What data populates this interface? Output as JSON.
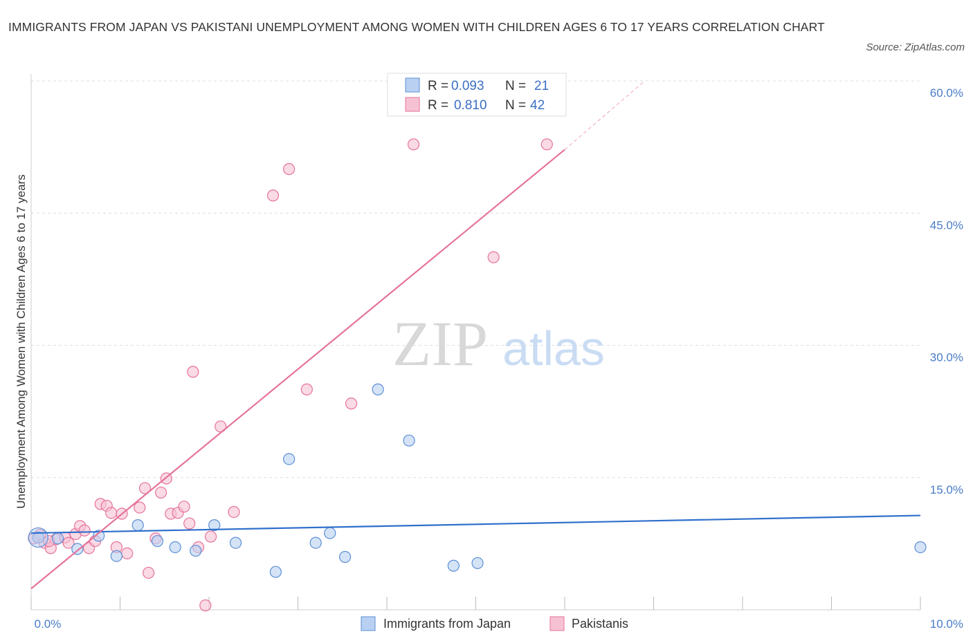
{
  "title": "IMMIGRANTS FROM JAPAN VS PAKISTANI UNEMPLOYMENT AMONG WOMEN WITH CHILDREN AGES 6 TO 17 YEARS CORRELATION CHART",
  "source": "Source: ZipAtlas.com",
  "watermark": {
    "zip": "ZIP",
    "atlas": "atlas"
  },
  "colors": {
    "japan": "#5b8fd6",
    "japan_fill": "#b9d0f2",
    "pakistani": "#e57399",
    "pakistani_fill": "#f6c2d3",
    "grid": "#dddddd",
    "axis_text": "#4a7cc7"
  },
  "chart_data": {
    "type": "scatter",
    "title": "IMMIGRANTS FROM JAPAN VS PAKISTANI UNEMPLOYMENT AMONG WOMEN WITH CHILDREN AGES 6 TO 17 YEARS CORRELATION CHART",
    "xlabel": "",
    "ylabel": "Unemployment Among Women with Children Ages 6 to 17 years",
    "xlim": [
      0,
      10
    ],
    "ylim": [
      0,
      60
    ],
    "x_tick_labels": [
      "0.0%",
      "10.0%"
    ],
    "y_ticks": [
      15,
      30,
      45,
      60
    ],
    "y_tick_labels": [
      "15.0%",
      "30.0%",
      "45.0%",
      "60.0%"
    ],
    "grid": true,
    "legend": [
      {
        "r_label": "R =",
        "r": "0.093",
        "n_label": "N =",
        "n": "21"
      },
      {
        "r_label": "R =",
        "r": "0.810",
        "n_label": "N =",
        "n": "42"
      }
    ],
    "series": [
      {
        "name": "Immigrants from Japan",
        "trend": {
          "x0": 0,
          "y0": 8.7,
          "x1": 10,
          "y1": 10.7
        },
        "points": [
          [
            0.08,
            8.2
          ],
          [
            0.3,
            8.1
          ],
          [
            0.52,
            6.9
          ],
          [
            0.76,
            8.4
          ],
          [
            0.96,
            6.1
          ],
          [
            1.2,
            9.6
          ],
          [
            1.42,
            7.8
          ],
          [
            1.62,
            7.1
          ],
          [
            1.85,
            6.7
          ],
          [
            2.06,
            9.6
          ],
          [
            2.3,
            7.6
          ],
          [
            2.75,
            4.3
          ],
          [
            2.9,
            17.1
          ],
          [
            3.2,
            7.6
          ],
          [
            3.36,
            8.7
          ],
          [
            3.53,
            6.0
          ],
          [
            3.9,
            25.0
          ],
          [
            4.25,
            19.2
          ],
          [
            4.75,
            5.0
          ],
          [
            5.02,
            5.3
          ],
          [
            10.0,
            7.1
          ]
        ]
      },
      {
        "name": "Pakistanis",
        "trend": {
          "x0": 0,
          "y0": 2.4,
          "x1": 6.0,
          "y1": 52.2,
          "dash_x1": 6.9,
          "dash_y1": 60.0
        },
        "points": [
          [
            0.03,
            8.1
          ],
          [
            0.1,
            8.5
          ],
          [
            0.15,
            7.6
          ],
          [
            0.22,
            7.0
          ],
          [
            0.28,
            8.0
          ],
          [
            0.38,
            8.2
          ],
          [
            0.42,
            7.6
          ],
          [
            0.5,
            8.6
          ],
          [
            0.55,
            9.5
          ],
          [
            0.6,
            9.0
          ],
          [
            0.65,
            7.0
          ],
          [
            0.72,
            7.8
          ],
          [
            0.78,
            12.0
          ],
          [
            0.85,
            11.8
          ],
          [
            0.9,
            11.0
          ],
          [
            0.96,
            7.1
          ],
          [
            1.02,
            10.9
          ],
          [
            1.08,
            6.4
          ],
          [
            1.22,
            11.6
          ],
          [
            1.28,
            13.8
          ],
          [
            1.32,
            4.2
          ],
          [
            1.4,
            8.1
          ],
          [
            1.46,
            13.3
          ],
          [
            1.52,
            14.9
          ],
          [
            1.57,
            10.9
          ],
          [
            1.65,
            11.0
          ],
          [
            1.72,
            11.7
          ],
          [
            1.78,
            9.8
          ],
          [
            1.82,
            27.0
          ],
          [
            1.88,
            7.1
          ],
          [
            1.96,
            0.5
          ],
          [
            2.02,
            8.3
          ],
          [
            2.13,
            20.8
          ],
          [
            2.28,
            11.1
          ],
          [
            2.72,
            47.0
          ],
          [
            2.9,
            50.0
          ],
          [
            3.1,
            25.0
          ],
          [
            3.6,
            23.4
          ],
          [
            4.3,
            52.8
          ],
          [
            5.2,
            40.0
          ],
          [
            5.8,
            52.8
          ],
          [
            0.2,
            7.8
          ]
        ]
      }
    ]
  }
}
